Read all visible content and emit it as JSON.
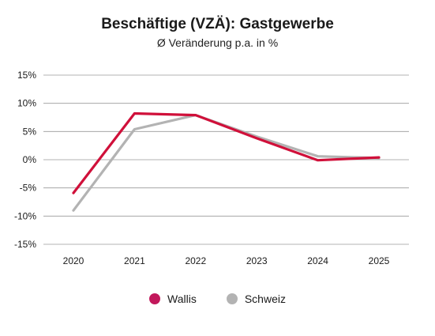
{
  "chart_data": {
    "type": "line",
    "title": "Beschäftige (VZÄ): Gastgewerbe",
    "subtitle": "Ø Veränderung p.a. in %",
    "x": [
      "2020",
      "2021",
      "2022",
      "2023",
      "2024",
      "2025"
    ],
    "ylim": [
      -15,
      15
    ],
    "yticks": [
      "15%",
      "10%",
      "5%",
      "0%",
      "-5%",
      "-10%",
      "-15%"
    ],
    "ytick_values": [
      15,
      10,
      5,
      0,
      -5,
      -10,
      -15
    ],
    "grid": "horizontal",
    "legend_position": "bottom",
    "series": [
      {
        "name": "Wallis",
        "color": "#d0103a",
        "legend_color": "#c2185b",
        "values": [
          -5.9,
          8.2,
          7.9,
          3.8,
          -0.1,
          0.4
        ]
      },
      {
        "name": "Schweiz",
        "color": "#b3b3b3",
        "legend_color": "#b3b3b3",
        "values": [
          -9.0,
          5.4,
          7.9,
          4.1,
          0.6,
          0.3
        ]
      }
    ]
  }
}
